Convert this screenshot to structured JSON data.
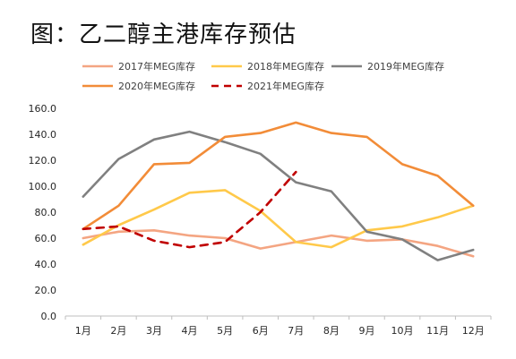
{
  "title": "图：乙二醇主港库存预估",
  "chart_data": {
    "type": "line",
    "categories": [
      "1月",
      "2月",
      "3月",
      "4月",
      "5月",
      "6月",
      "7月",
      "8月",
      "9月",
      "10月",
      "11月",
      "12月"
    ],
    "ylim": [
      0,
      160
    ],
    "yticks": [
      "0.0",
      "20.0",
      "40.0",
      "60.0",
      "80.0",
      "100.0",
      "120.0",
      "140.0",
      "160.0"
    ],
    "grid": false,
    "legend_position": "top",
    "series": [
      {
        "name": "2017年MEG库存",
        "color": "#F4A582",
        "dashed": false,
        "values": [
          60,
          65,
          66,
          62,
          60,
          52,
          57,
          62,
          58,
          59,
          54,
          46
        ]
      },
      {
        "name": "2018年MEG库存",
        "color": "#FFC94A",
        "dashed": false,
        "values": [
          55,
          70,
          82,
          95,
          97,
          81,
          57,
          53,
          66,
          69,
          76,
          85
        ]
      },
      {
        "name": "2019年MEG库存",
        "color": "#808080",
        "dashed": false,
        "values": [
          92,
          121,
          136,
          142,
          134,
          125,
          103,
          96,
          65,
          59,
          43,
          51
        ]
      },
      {
        "name": "2020年MEG库存",
        "color": "#F28C38",
        "dashed": false,
        "values": [
          67,
          85,
          117,
          118,
          138,
          141,
          149,
          141,
          138,
          117,
          108,
          85
        ]
      },
      {
        "name": "2021年MEG库存",
        "color": "#C00000",
        "dashed": true,
        "values": [
          67,
          69,
          58,
          53,
          57,
          80,
          111,
          null,
          null,
          null,
          null,
          null
        ]
      }
    ]
  }
}
